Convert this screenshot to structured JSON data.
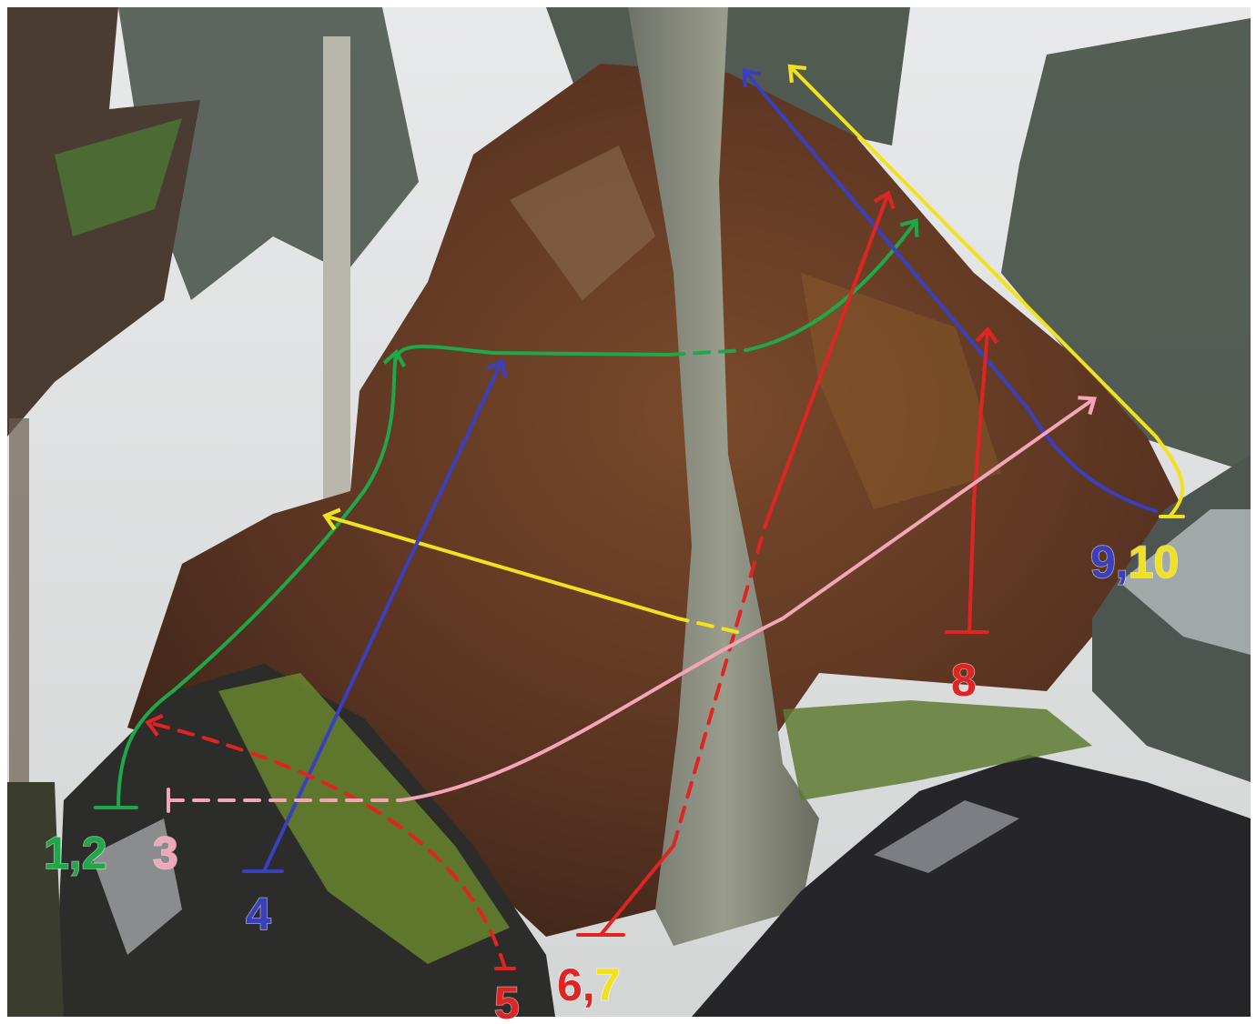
{
  "labels": [
    [
      "1,2"
    ],
    [
      "3"
    ],
    [
      "4"
    ],
    [
      "5"
    ],
    [
      "6,",
      "7"
    ],
    [
      "8"
    ],
    [
      "9,",
      "10"
    ]
  ]
}
